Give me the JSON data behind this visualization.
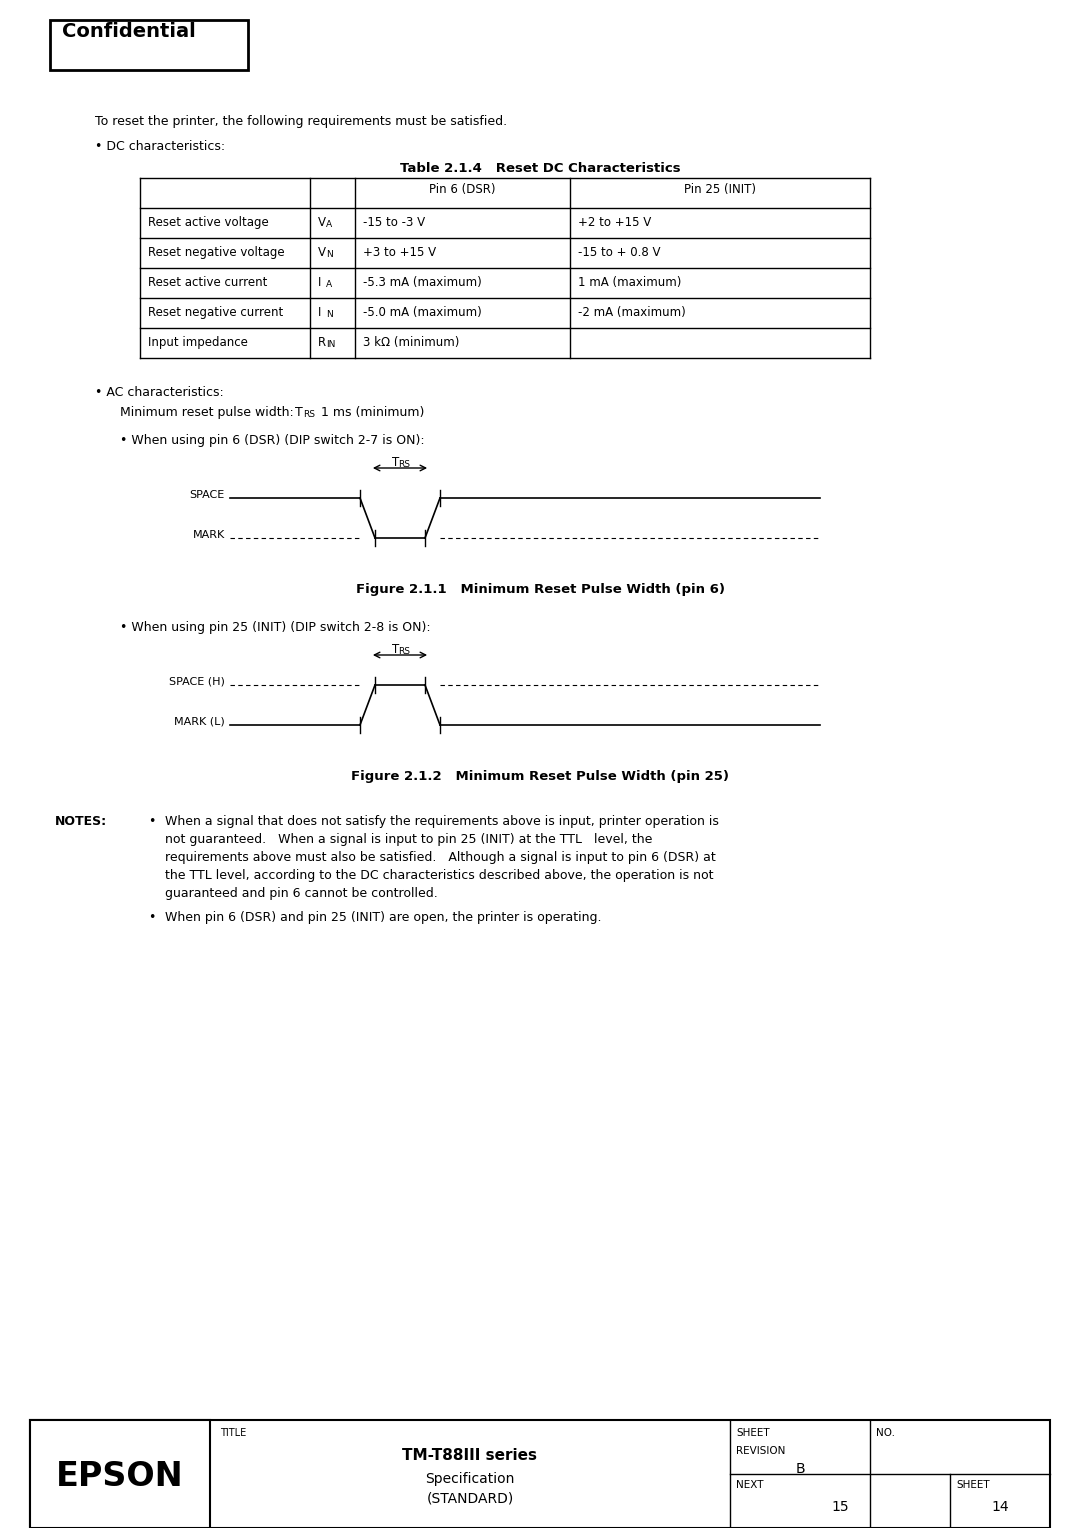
{
  "bg_color": "#ffffff",
  "confidential_text": "Confidential",
  "intro_text": "To reset the printer, the following requirements must be satisfied.",
  "dc_bullet": "• DC characteristics:",
  "table_title": "Table 2.1.4   Reset DC Characteristics",
  "table_col_headers": [
    "",
    "",
    "Pin 6 (DSR)",
    "Pin 25 (INIT)"
  ],
  "table_rows": [
    [
      "Reset active voltage",
      "VA",
      "-15 to -3 V",
      "+2 to +15 V"
    ],
    [
      "Reset negative voltage",
      "VN",
      "+3 to +15 V",
      "-15 to + 0.8 V"
    ],
    [
      "Reset active current",
      "IA",
      "-5.3 mA (maximum)",
      "1 mA (maximum)"
    ],
    [
      "Reset negative current",
      "IN",
      "-5.0 mA (maximum)",
      "-2 mA (maximum)"
    ],
    [
      "Input impedance",
      "RIN",
      "3 kΩ (minimum)",
      ""
    ]
  ],
  "sym_main": [
    "V",
    "V",
    "I",
    "I",
    "R"
  ],
  "sym_sub": [
    "A",
    "N",
    "A",
    "N",
    "IN"
  ],
  "ac_bullet": "• AC characteristics:",
  "min_reset_line1": "Minimum reset pulse width:",
  "min_reset_trs": "T",
  "min_reset_trs_sub": "RS",
  "min_reset_line2": "1 ms (minimum)",
  "pin6_bullet": "• When using pin 6 (DSR) (DIP switch 2-7 is ON):",
  "fig1_trs": "T",
  "fig1_trs_sub": "RS",
  "fig1_space_label": "SPACE",
  "fig1_mark_label": "MARK",
  "fig1_caption": "Figure 2.1.1   Minimum Reset Pulse Width (pin 6)",
  "pin25_bullet": "• When using pin 25 (INIT) (DIP switch 2-8 is ON):",
  "fig2_trs": "T",
  "fig2_trs_sub": "RS",
  "fig2_space_label": "SPACE (H)",
  "fig2_mark_label": "MARK (L)",
  "fig2_caption": "Figure 2.1.2   Minimum Reset Pulse Width (pin 25)",
  "notes_label": "NOTES:",
  "note1_lines": [
    "When a signal that does not satisfy the requirements above is input, printer operation is",
    "not guaranteed.   When a signal is input to pin 25 (INIT) at the TTL   level, the",
    "requirements above must also be satisfied.   Although a signal is input to pin 6 (DSR) at",
    "the TTL level, according to the DC characteristics described above, the operation is not",
    "guaranteed and pin 6 cannot be controlled."
  ],
  "note2": "When pin 6 (DSR) and pin 25 (INIT) are open, the printer is operating.",
  "footer_epson": "EPSON",
  "footer_title_label": "TITLE",
  "footer_product": "TM-T88III series",
  "footer_spec": "Specification",
  "footer_standard": "(STANDARD)",
  "footer_sheet_label": "SHEET",
  "footer_revision_label": "REVISION",
  "footer_revision_val": "B",
  "footer_no_label": "NO.",
  "footer_next_label": "NEXT",
  "footer_next_val": "15",
  "footer_sheet_num_label": "SHEET",
  "footer_sheet_num": "14"
}
